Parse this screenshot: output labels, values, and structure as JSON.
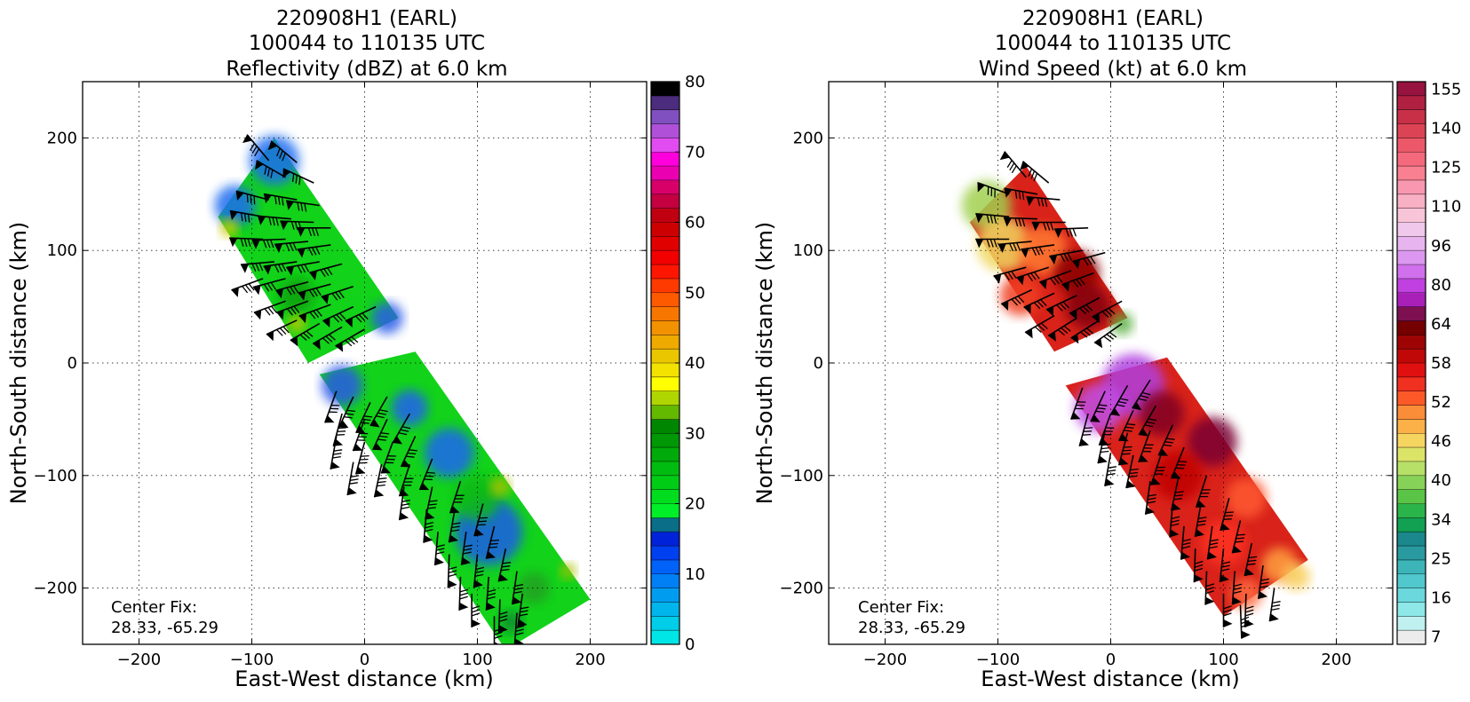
{
  "chart_data": [
    {
      "type": "heatmap",
      "title_lines": [
        "220908H1 (EARL)",
        "100044 to 110135 UTC",
        "Reflectivity (dBZ) at 6.0 km"
      ],
      "xlabel": "East-West distance (km)",
      "ylabel": "North-South distance (km)",
      "xlim": [
        -250,
        250
      ],
      "ylim": [
        -250,
        250
      ],
      "x_ticks": [
        -200,
        -100,
        0,
        100,
        200
      ],
      "y_ticks": [
        -200,
        -100,
        0,
        100,
        200
      ],
      "tick_labels": {
        "x": [
          "−200",
          "−100",
          "0",
          "100",
          "200"
        ],
        "y": [
          "−200",
          "−100",
          "0",
          "100",
          "200"
        ]
      },
      "grid": true,
      "annotation": [
        "Center Fix:",
        "28.33, -65.29"
      ],
      "colorbar": {
        "min": 0,
        "max": 80,
        "ticks": [
          0,
          10,
          20,
          30,
          40,
          50,
          60,
          70,
          80
        ],
        "colors": [
          "#00e5e5",
          "#00cde8",
          "#00b5ec",
          "#009cf0",
          "#0080f4",
          "#0062f8",
          "#0040f0",
          "#0022d8",
          "#0a6e88",
          "#00ee28",
          "#00dc1e",
          "#00cc16",
          "#00bc10",
          "#00aa0a",
          "#009806",
          "#008600",
          "#63b800",
          "#afd600",
          "#ffff00",
          "#f3e200",
          "#e9c600",
          "#efaa00",
          "#f39200",
          "#f77600",
          "#fd5a00",
          "#ff3a00",
          "#ff1600",
          "#f20000",
          "#e00000",
          "#cc0000",
          "#c00010",
          "#c40040",
          "#d80068",
          "#ea00b0",
          "#ff00dc",
          "#e04cf0",
          "#b050d8",
          "#8050c0",
          "#4c2c7c",
          "#000000"
        ]
      },
      "data_region": {
        "field": "Reflectivity (dBZ)",
        "dominant_range_dbz": [
          20,
          30
        ],
        "patches_dbz": [
          10,
          15
        ],
        "swaths": [
          {
            "corners": [
              [
                -80,
                200
              ],
              [
                -130,
                130
              ],
              [
                -50,
                0
              ],
              [
                30,
                40
              ]
            ]
          },
          {
            "corners": [
              [
                -40,
                -10
              ],
              [
                45,
                10
              ],
              [
                200,
                -210
              ],
              [
                125,
                -255
              ]
            ]
          }
        ]
      }
    },
    {
      "type": "heatmap",
      "title_lines": [
        "220908H1 (EARL)",
        "100044 to 110135 UTC",
        "Wind Speed (kt) at 6.0 km"
      ],
      "xlabel": "East-West distance (km)",
      "ylabel": "North-South distance (km)",
      "xlim": [
        -250,
        250
      ],
      "ylim": [
        -250,
        250
      ],
      "x_ticks": [
        -200,
        -100,
        0,
        100,
        200
      ],
      "y_ticks": [
        -200,
        -100,
        0,
        100,
        200
      ],
      "tick_labels": {
        "x": [
          "−200",
          "−100",
          "0",
          "100",
          "200"
        ],
        "y": [
          "−200",
          "−100",
          "0",
          "100",
          "200"
        ]
      },
      "grid": true,
      "annotation": [
        "Center Fix:",
        "28.33, -65.29"
      ],
      "colorbar": {
        "ticks_top_to_bottom": [
          "155",
          "140",
          "125",
          "110",
          "96",
          "80",
          "64",
          "58",
          "52",
          "46",
          "40",
          "34",
          "25",
          "16",
          "7"
        ],
        "colors_bottom_to_top": [
          "#ececec",
          "#c0f0f0",
          "#8ee8e8",
          "#6ad8dc",
          "#50c8cc",
          "#3cb4b8",
          "#289aa0",
          "#1a888c",
          "#12a052",
          "#2ab44a",
          "#5ac446",
          "#86d258",
          "#b6e068",
          "#dce468",
          "#f6d460",
          "#fcb048",
          "#fb8c38",
          "#fb5a28",
          "#f03020",
          "#e01010",
          "#c00808",
          "#9e0404",
          "#740000",
          "#7c1050",
          "#a820b8",
          "#c040e0",
          "#d070ec",
          "#dc98f0",
          "#e8b4f0",
          "#f0c8ec",
          "#f8c4d8",
          "#f8b0c4",
          "#f898b0",
          "#f88090",
          "#f46a7c",
          "#ec5868",
          "#dc4456",
          "#c83048",
          "#b02040",
          "#981440"
        ]
      },
      "data_region": {
        "field": "Wind Speed (kt)",
        "swaths": [
          {
            "corners": [
              [
                -75,
                175
              ],
              [
                -125,
                125
              ],
              [
                -50,
                10
              ],
              [
                15,
                40
              ]
            ]
          },
          {
            "corners": [
              [
                -40,
                -20
              ],
              [
                50,
                5
              ],
              [
                175,
                -175
              ],
              [
                100,
                -225
              ]
            ]
          }
        ]
      }
    }
  ],
  "wind_barbs": {
    "left": [
      [
        -85,
        180,
        130
      ],
      [
        -60,
        178,
        140
      ],
      [
        -70,
        165,
        150
      ],
      [
        -45,
        160,
        155
      ],
      [
        -85,
        145,
        165
      ],
      [
        -60,
        145,
        170
      ],
      [
        -40,
        140,
        172
      ],
      [
        -90,
        130,
        170
      ],
      [
        -65,
        128,
        175
      ],
      [
        -45,
        125,
        178
      ],
      [
        -30,
        120,
        180
      ],
      [
        -90,
        110,
        178
      ],
      [
        -70,
        110,
        182
      ],
      [
        -50,
        108,
        185
      ],
      [
        -30,
        105,
        188
      ],
      [
        -80,
        90,
        185
      ],
      [
        -60,
        90,
        188
      ],
      [
        -40,
        90,
        190
      ],
      [
        -20,
        88,
        195
      ],
      [
        -90,
        75,
        200
      ],
      [
        -70,
        75,
        195
      ],
      [
        -50,
        72,
        195
      ],
      [
        -30,
        70,
        195
      ],
      [
        -10,
        68,
        198
      ],
      [
        -70,
        55,
        200
      ],
      [
        -50,
        55,
        200
      ],
      [
        -30,
        52,
        200
      ],
      [
        -10,
        50,
        205
      ],
      [
        10,
        50,
        205
      ],
      [
        -60,
        38,
        205
      ],
      [
        -40,
        35,
        210
      ],
      [
        -20,
        32,
        210
      ],
      [
        0,
        30,
        210
      ],
      [
        -25,
        -25,
        250
      ],
      [
        -10,
        -30,
        245
      ],
      [
        5,
        -35,
        245
      ],
      [
        20,
        -30,
        240
      ],
      [
        -20,
        -45,
        255
      ],
      [
        0,
        -50,
        250
      ],
      [
        20,
        -50,
        245
      ],
      [
        40,
        -45,
        240
      ],
      [
        -25,
        -65,
        260
      ],
      [
        0,
        -70,
        255
      ],
      [
        25,
        -70,
        250
      ],
      [
        45,
        -65,
        245
      ],
      [
        -10,
        -88,
        260
      ],
      [
        15,
        -90,
        258
      ],
      [
        40,
        -90,
        252
      ],
      [
        60,
        -85,
        248
      ],
      [
        35,
        -110,
        262
      ],
      [
        60,
        -110,
        258
      ],
      [
        85,
        -105,
        252
      ],
      [
        55,
        -130,
        265
      ],
      [
        80,
        -130,
        260
      ],
      [
        105,
        -125,
        255
      ],
      [
        65,
        -150,
        265
      ],
      [
        90,
        -150,
        262
      ],
      [
        115,
        -145,
        256
      ],
      [
        75,
        -170,
        268
      ],
      [
        100,
        -170,
        264
      ],
      [
        125,
        -165,
        258
      ],
      [
        85,
        -190,
        268
      ],
      [
        110,
        -190,
        266
      ],
      [
        135,
        -185,
        262
      ],
      [
        95,
        -205,
        270
      ],
      [
        120,
        -210,
        268
      ],
      [
        140,
        -205,
        262
      ],
      [
        115,
        -225,
        270
      ],
      [
        135,
        -222,
        266
      ]
    ],
    "right": [
      [
        -75,
        165,
        130
      ],
      [
        -55,
        160,
        140
      ],
      [
        -90,
        150,
        160
      ],
      [
        -65,
        150,
        170
      ],
      [
        -45,
        145,
        175
      ],
      [
        -90,
        130,
        175
      ],
      [
        -65,
        128,
        178
      ],
      [
        -40,
        125,
        180
      ],
      [
        -20,
        120,
        182
      ],
      [
        -90,
        110,
        180
      ],
      [
        -70,
        108,
        185
      ],
      [
        -50,
        105,
        188
      ],
      [
        -25,
        100,
        190
      ],
      [
        -5,
        98,
        195
      ],
      [
        -75,
        85,
        195
      ],
      [
        -55,
        85,
        198
      ],
      [
        -35,
        82,
        200
      ],
      [
        -15,
        80,
        200
      ],
      [
        -70,
        65,
        205
      ],
      [
        -50,
        62,
        205
      ],
      [
        -30,
        60,
        205
      ],
      [
        -10,
        58,
        208
      ],
      [
        10,
        55,
        208
      ],
      [
        -50,
        42,
        210
      ],
      [
        -30,
        40,
        212
      ],
      [
        -10,
        38,
        212
      ],
      [
        10,
        35,
        215
      ],
      [
        -25,
        -22,
        250
      ],
      [
        -5,
        -25,
        245
      ],
      [
        15,
        -20,
        240
      ],
      [
        35,
        -15,
        238
      ],
      [
        -20,
        -45,
        255
      ],
      [
        0,
        -45,
        250
      ],
      [
        20,
        -42,
        245
      ],
      [
        40,
        -38,
        240
      ],
      [
        -5,
        -60,
        258
      ],
      [
        15,
        -62,
        255
      ],
      [
        35,
        -60,
        250
      ],
      [
        55,
        -55,
        245
      ],
      [
        0,
        -80,
        260
      ],
      [
        20,
        -82,
        258
      ],
      [
        45,
        -80,
        252
      ],
      [
        65,
        -75,
        248
      ],
      [
        35,
        -105,
        262
      ],
      [
        60,
        -102,
        258
      ],
      [
        85,
        -100,
        252
      ],
      [
        55,
        -125,
        265
      ],
      [
        80,
        -125,
        260
      ],
      [
        105,
        -120,
        255
      ],
      [
        65,
        -145,
        265
      ],
      [
        90,
        -145,
        262
      ],
      [
        115,
        -140,
        256
      ],
      [
        75,
        -165,
        268
      ],
      [
        100,
        -165,
        264
      ],
      [
        125,
        -160,
        258
      ],
      [
        85,
        -185,
        268
      ],
      [
        110,
        -185,
        266
      ],
      [
        135,
        -180,
        262
      ],
      [
        100,
        -205,
        270
      ],
      [
        120,
        -205,
        268
      ],
      [
        145,
        -200,
        262
      ],
      [
        115,
        -215,
        272
      ]
    ]
  }
}
